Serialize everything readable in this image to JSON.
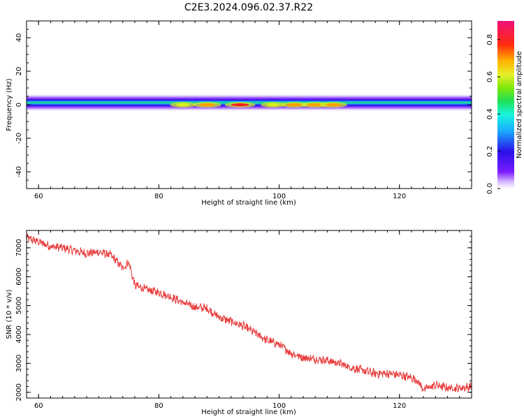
{
  "title": "C2E3.2024.096.02.37.R22",
  "top_panel": {
    "ylabel": "Frequency (Hz)",
    "xlabel": "Height of straight line (km)",
    "colorbar_label": "Normalized spectral amplitude"
  },
  "bottom_panel": {
    "ylabel": "SNR (10 * v/v)",
    "xlabel": "Height of straight line (km)"
  },
  "colors": {
    "snr_line": "#e83a3a"
  },
  "chart_data": [
    {
      "type": "heatmap",
      "title": "C2E3.2024.096.02.37.R22",
      "xlabel": "Height of straight line (km)",
      "ylabel": "Frequency (Hz)",
      "xlim": [
        58,
        132
      ],
      "ylim": [
        -50,
        50
      ],
      "xticks": [
        "60",
        "80",
        "100",
        "120"
      ],
      "yticks": [
        "-40",
        "-20",
        "0",
        "20",
        "40"
      ],
      "colorbar": {
        "label": "Normalized spectral amplitude",
        "range": [
          0.0,
          0.9
        ],
        "ticks": [
          "0.0",
          "0.2",
          "0.4",
          "0.6",
          "0.8"
        ],
        "colormap": "gist_ncar"
      },
      "band": {
        "center_hz": 0,
        "core_halfwidth_hz": 1,
        "outer_halfwidth_hz": 4
      },
      "peaks": [
        {
          "x": 84,
          "amplitude": 0.6
        },
        {
          "x": 88,
          "amplitude": 0.75
        },
        {
          "x": 93.5,
          "amplitude": 0.85
        },
        {
          "x": 99,
          "amplitude": 0.55
        },
        {
          "x": 102.5,
          "amplitude": 0.7
        },
        {
          "x": 106,
          "amplitude": 0.75
        },
        {
          "x": 109,
          "amplitude": 0.7
        }
      ]
    },
    {
      "type": "line",
      "xlabel": "Height of straight line (km)",
      "ylabel": "SNR (10 * v/v)",
      "xlim": [
        58,
        132
      ],
      "ylim": [
        1800,
        7600
      ],
      "xticks": [
        "60",
        "80",
        "100",
        "120"
      ],
      "yticks": [
        "2000",
        "3000",
        "4000",
        "5000",
        "6000",
        "7000"
      ],
      "x": [
        58,
        60,
        62,
        64,
        66,
        68,
        70,
        72,
        74,
        75,
        76,
        78,
        80,
        82,
        84,
        86,
        88,
        90,
        92,
        94,
        96,
        98,
        100,
        102,
        104,
        106,
        108,
        110,
        112,
        114,
        116,
        118,
        120,
        122,
        123,
        124,
        126,
        128,
        130,
        132
      ],
      "y": [
        7350,
        7200,
        7050,
        7000,
        6900,
        6800,
        6850,
        6750,
        6300,
        6500,
        5700,
        5550,
        5450,
        5300,
        5100,
        4950,
        4900,
        4600,
        4450,
        4300,
        4050,
        3800,
        3650,
        3350,
        3200,
        3150,
        3100,
        3000,
        2850,
        2750,
        2650,
        2650,
        2600,
        2500,
        2400,
        2100,
        2250,
        2150,
        2150,
        2200
      ]
    }
  ]
}
